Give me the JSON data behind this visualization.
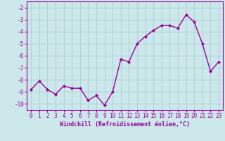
{
  "x": [
    0,
    1,
    2,
    3,
    4,
    5,
    6,
    7,
    8,
    9,
    10,
    11,
    12,
    13,
    14,
    15,
    16,
    17,
    18,
    19,
    20,
    21,
    22,
    23
  ],
  "y": [
    -8.8,
    -8.1,
    -8.8,
    -9.2,
    -8.5,
    -8.7,
    -8.7,
    -9.7,
    -9.3,
    -10.1,
    -9.0,
    -6.3,
    -6.5,
    -5.0,
    -4.4,
    -3.9,
    -3.5,
    -3.5,
    -3.7,
    -2.6,
    -3.2,
    -5.0,
    -7.3,
    -6.5
  ],
  "line_color": "#990099",
  "marker": "D",
  "marker_size": 2,
  "linewidth": 1.0,
  "xlabel": "Windchill (Refroidissement éolien,°C)",
  "xlabel_fontsize": 6.0,
  "ylim": [
    -10.5,
    -1.5
  ],
  "xlim": [
    -0.5,
    23.5
  ],
  "yticks": [
    -10,
    -9,
    -8,
    -7,
    -6,
    -5,
    -4,
    -3,
    -2
  ],
  "xtick_labels": [
    "0",
    "1",
    "2",
    "3",
    "4",
    "5",
    "6",
    "7",
    "8",
    "9",
    "10",
    "11",
    "12",
    "13",
    "14",
    "15",
    "16",
    "17",
    "18",
    "19",
    "20",
    "21",
    "22",
    "23"
  ],
  "background_color": "#cce8ea",
  "grid_color": "#b0d4d8",
  "tick_color": "#990099",
  "tick_fontsize": 5.5,
  "spine_color": "#990099"
}
